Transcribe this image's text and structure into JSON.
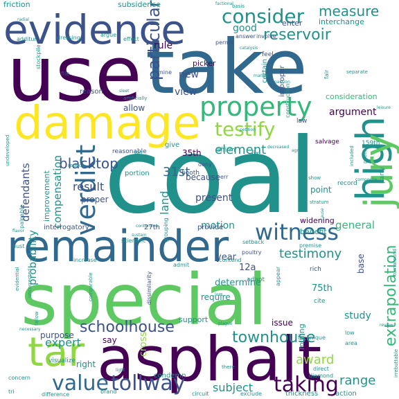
{
  "palette": {
    "dark_purple": "#440154",
    "indigo": "#3b528b",
    "blue": "#31688e",
    "teal": "#21918c",
    "green": "#35b779",
    "light_green": "#5ec962",
    "lime": "#90d743",
    "yellow": "#fde725",
    "gray": "#b8b8b8"
  },
  "words": [
    {
      "text": "coal",
      "weight": 1.0,
      "color": "teal",
      "vertical": false
    },
    {
      "text": "use",
      "weight": 0.9,
      "color": "dark_purple",
      "vertical": false
    },
    {
      "text": "take",
      "weight": 0.9,
      "color": "blue",
      "vertical": false
    },
    {
      "text": "special",
      "weight": 0.85,
      "color": "light_green",
      "vertical": false
    },
    {
      "text": "asphalt",
      "weight": 0.8,
      "color": "dark_purple",
      "vertical": false
    },
    {
      "text": "remainder",
      "weight": 0.6,
      "color": "blue",
      "vertical": false
    },
    {
      "text": "damage",
      "weight": 0.55,
      "color": "yellow",
      "vertical": false
    },
    {
      "text": "evidence",
      "weight": 0.5,
      "color": "indigo",
      "vertical": false
    },
    {
      "text": "high",
      "weight": 0.5,
      "color": "teal",
      "vertical": true
    },
    {
      "text": "jury",
      "weight": 0.45,
      "color": "light_green",
      "vertical": true
    },
    {
      "text": "tar",
      "weight": 0.45,
      "color": "lime",
      "vertical": false
    },
    {
      "text": "property",
      "weight": 0.35,
      "color": "green",
      "vertical": false
    },
    {
      "text": "witness",
      "weight": 0.3,
      "color": "blue",
      "vertical": false
    },
    {
      "text": "verdict",
      "weight": 0.3,
      "color": "blue",
      "vertical": true
    },
    {
      "text": "value",
      "weight": 0.28,
      "color": "blue",
      "vertical": false
    },
    {
      "text": "tollway",
      "weight": 0.28,
      "color": "indigo",
      "vertical": false
    },
    {
      "text": "taking",
      "weight": 0.28,
      "color": "dark_purple",
      "vertical": false
    },
    {
      "text": "consider",
      "weight": 0.25,
      "color": "teal",
      "vertical": false
    },
    {
      "text": "testify",
      "weight": 0.25,
      "color": "lime",
      "vertical": false
    },
    {
      "text": "schoolhouse",
      "weight": 0.22,
      "color": "indigo",
      "vertical": false
    },
    {
      "text": "extrapolation",
      "weight": 0.22,
      "color": "green",
      "vertical": true
    },
    {
      "text": "reservoir",
      "weight": 0.2,
      "color": "teal",
      "vertical": false
    },
    {
      "text": "particular",
      "weight": 0.2,
      "color": "indigo",
      "vertical": true
    },
    {
      "text": "townhouse",
      "weight": 0.2,
      "color": "teal",
      "vertical": false
    },
    {
      "text": "measure",
      "weight": 0.2,
      "color": "teal",
      "vertical": false
    },
    {
      "text": "testimony",
      "weight": 0.2,
      "color": "teal",
      "vertical": false
    },
    {
      "text": "blacktop",
      "weight": 0.2,
      "color": "indigo",
      "vertical": false
    },
    {
      "text": "element",
      "weight": 0.18,
      "color": "teal",
      "vertical": false
    },
    {
      "text": "award",
      "weight": 0.18,
      "color": "lime",
      "vertical": false
    },
    {
      "text": "range",
      "weight": 0.18,
      "color": "teal",
      "vertical": false
    },
    {
      "text": "31st",
      "weight": 0.18,
      "color": "blue",
      "vertical": false
    },
    {
      "text": "expert",
      "weight": 0.16,
      "color": "teal",
      "vertical": false
    },
    {
      "text": "compensation",
      "weight": 0.16,
      "color": "teal",
      "vertical": true
    },
    {
      "text": "probability",
      "weight": 0.16,
      "color": "teal",
      "vertical": true
    },
    {
      "text": "defendants",
      "weight": 0.16,
      "color": "indigo",
      "vertical": true
    },
    {
      "text": "result",
      "weight": 0.16,
      "color": "indigo",
      "vertical": false
    },
    {
      "text": "land",
      "weight": 0.16,
      "color": "teal",
      "vertical": true
    },
    {
      "text": "subject",
      "weight": 0.16,
      "color": "teal",
      "vertical": false
    },
    {
      "text": "general",
      "weight": 0.14,
      "color": "green",
      "vertical": false
    },
    {
      "text": "motion",
      "weight": 0.14,
      "color": "teal",
      "vertical": false
    },
    {
      "text": "present",
      "weight": 0.14,
      "color": "indigo",
      "vertical": false
    },
    {
      "text": "argument",
      "weight": 0.14,
      "color": "dark_purple",
      "vertical": false
    },
    {
      "text": "view",
      "weight": 0.14,
      "color": "indigo",
      "vertical": false
    },
    {
      "text": "new",
      "weight": 0.14,
      "color": "indigo",
      "vertical": false
    },
    {
      "text": "rule",
      "weight": 0.14,
      "color": "dark_purple",
      "vertical": false
    },
    {
      "text": "good",
      "weight": 0.14,
      "color": "teal",
      "vertical": false
    },
    {
      "text": "study",
      "weight": 0.14,
      "color": "teal",
      "vertical": false
    },
    {
      "text": "cross",
      "weight": 0.14,
      "color": "lime",
      "vertical": true
    },
    {
      "text": "determine",
      "weight": 0.13,
      "color": "teal",
      "vertical": false
    },
    {
      "text": "12a",
      "weight": 0.13,
      "color": "indigo",
      "vertical": false
    },
    {
      "text": "75th",
      "weight": 0.13,
      "color": "teal",
      "vertical": false
    },
    {
      "text": "year",
      "weight": 0.12,
      "color": "indigo",
      "vertical": false
    },
    {
      "text": "because",
      "weight": 0.12,
      "color": "indigo",
      "vertical": false
    },
    {
      "text": "point",
      "weight": 0.12,
      "color": "teal",
      "vertical": false
    },
    {
      "text": "proper",
      "weight": 0.12,
      "color": "indigo",
      "vertical": false
    },
    {
      "text": "35th",
      "weight": 0.12,
      "color": "dark_purple",
      "vertical": false
    },
    {
      "text": "purpose",
      "weight": 0.12,
      "color": "indigo",
      "vertical": false
    },
    {
      "text": "consideration",
      "weight": 0.12,
      "color": "green",
      "vertical": false
    },
    {
      "text": "benefit",
      "weight": 0.12,
      "color": "teal",
      "vertical": false
    },
    {
      "text": "base",
      "weight": 0.12,
      "color": "indigo",
      "vertical": true
    },
    {
      "text": "require",
      "weight": 0.12,
      "color": "teal",
      "vertical": false
    },
    {
      "text": "right",
      "weight": 0.12,
      "color": "teal",
      "vertical": false
    },
    {
      "text": "say",
      "weight": 0.12,
      "color": "dark_purple",
      "vertical": false
    },
    {
      "text": "support",
      "weight": 0.12,
      "color": "teal",
      "vertical": false
    },
    {
      "text": "mining",
      "weight": 0.12,
      "color": "teal",
      "vertical": true
    },
    {
      "text": "issue",
      "weight": 0.12,
      "color": "dark_purple",
      "vertical": false
    },
    {
      "text": "allow",
      "weight": 0.12,
      "color": "indigo",
      "vertical": false
    },
    {
      "text": "picker",
      "weight": 0.11,
      "color": "dark_purple",
      "vertical": false
    },
    {
      "text": "interchange",
      "weight": 0.11,
      "color": "teal",
      "vertical": false
    },
    {
      "text": "subsidence",
      "weight": 0.11,
      "color": "teal",
      "vertical": false
    },
    {
      "text": "friction",
      "weight": 0.11,
      "color": "teal",
      "vertical": false
    },
    {
      "text": "enter",
      "weight": 0.11,
      "color": "indigo",
      "vertical": false
    },
    {
      "text": "improvement",
      "weight": 0.11,
      "color": "teal",
      "vertical": true
    },
    {
      "text": "widening",
      "weight": 0.11,
      "color": "dark_purple",
      "vertical": false
    },
    {
      "text": "interrogatory",
      "weight": 0.1,
      "color": "indigo",
      "vertical": false
    },
    {
      "text": "give",
      "weight": 0.1,
      "color": "teal",
      "vertical": false
    },
    {
      "text": "reason",
      "weight": 0.1,
      "color": "indigo",
      "vertical": false
    },
    {
      "text": "portion",
      "weight": 0.1,
      "color": "teal",
      "vertical": false
    },
    {
      "text": "improper",
      "weight": 0.1,
      "color": "indigo",
      "vertical": true
    },
    {
      "text": "certain",
      "weight": 0.1,
      "color": "teal",
      "vertical": true
    },
    {
      "text": "provide",
      "weight": 0.1,
      "color": "indigo",
      "vertical": false
    },
    {
      "text": "27th",
      "weight": 0.1,
      "color": "indigo",
      "vertical": false
    },
    {
      "text": "visualize",
      "weight": 0.1,
      "color": "teal",
      "vertical": false
    },
    {
      "text": "condemn",
      "weight": 0.1,
      "color": "teal",
      "vertical": false
    },
    {
      "text": "action",
      "weight": 0.1,
      "color": "teal",
      "vertical": false
    },
    {
      "text": "thickness",
      "weight": 0.1,
      "color": "teal",
      "vertical": false
    },
    {
      "text": "adapt",
      "weight": 0.1,
      "color": "teal",
      "vertical": false
    },
    {
      "text": "rich",
      "weight": 0.1,
      "color": "indigo",
      "vertical": false
    },
    {
      "text": "cite",
      "weight": 0.1,
      "color": "teal",
      "vertical": false
    },
    {
      "text": "159th",
      "weight": 0.09,
      "color": "teal",
      "vertical": false
    },
    {
      "text": "salvage",
      "weight": 0.09,
      "color": "dark_purple",
      "vertical": false
    },
    {
      "text": "reasonable",
      "weight": 0.09,
      "color": "indigo",
      "vertical": false
    },
    {
      "text": "booth",
      "weight": 0.09,
      "color": "indigo",
      "vertical": false
    },
    {
      "text": "affirm",
      "weight": 0.09,
      "color": "teal",
      "vertical": false
    },
    {
      "text": "record",
      "weight": 0.09,
      "color": "teal",
      "vertical": false
    },
    {
      "text": "party",
      "weight": 0.09,
      "color": "teal",
      "vertical": true
    },
    {
      "text": "fix",
      "weight": 0.09,
      "color": "teal",
      "vertical": false
    },
    {
      "text": "law",
      "weight": 0.09,
      "color": "indigo",
      "vertical": false
    },
    {
      "text": "feel",
      "weight": 0.09,
      "color": "indigo",
      "vertical": false
    },
    {
      "text": "permit",
      "weight": 0.08,
      "color": "indigo",
      "vertical": false
    },
    {
      "text": "answer",
      "weight": 0.08,
      "color": "indigo",
      "vertical": false
    },
    {
      "text": "involve",
      "weight": 0.08,
      "color": "indigo",
      "vertical": false
    },
    {
      "text": "mine",
      "weight": 0.08,
      "color": "indigo",
      "vertical": false
    },
    {
      "text": "file",
      "weight": 0.08,
      "color": "indigo",
      "vertical": false
    },
    {
      "text": "effect",
      "weight": 0.08,
      "color": "teal",
      "vertical": false
    },
    {
      "text": "argue",
      "weight": 0.08,
      "color": "teal",
      "vertical": false
    },
    {
      "text": "dressing",
      "weight": 0.08,
      "color": "teal",
      "vertical": false
    },
    {
      "text": "additur",
      "weight": 0.08,
      "color": "teal",
      "vertical": false
    },
    {
      "text": "stockpile",
      "weight": 0.08,
      "color": "teal",
      "vertical": true
    },
    {
      "text": "palpable",
      "weight": 0.08,
      "color": "teal",
      "vertical": true
    },
    {
      "text": "setback",
      "weight": 0.08,
      "color": "teal",
      "vertical": false
    },
    {
      "text": "contend",
      "weight": 0.08,
      "color": "teal",
      "vertical": false
    },
    {
      "text": "scientific",
      "weight": 0.08,
      "color": "teal",
      "vertical": false
    },
    {
      "text": "premise",
      "weight": 0.08,
      "color": "teal",
      "vertical": false
    },
    {
      "text": "appear",
      "weight": 0.08,
      "color": "teal",
      "vertical": true
    },
    {
      "text": "poultry",
      "weight": 0.08,
      "color": "indigo",
      "vertical": false
    },
    {
      "text": "dissimilarity",
      "weight": 0.08,
      "color": "indigo",
      "vertical": true
    },
    {
      "text": "admit",
      "weight": 0.08,
      "color": "teal",
      "vertical": false
    },
    {
      "text": "increase",
      "weight": 0.08,
      "color": "teal",
      "vertical": false
    },
    {
      "text": "dust",
      "weight": 0.08,
      "color": "teal",
      "vertical": false
    },
    {
      "text": "concern",
      "weight": 0.08,
      "color": "teal",
      "vertical": false
    },
    {
      "text": "tri",
      "weight": 0.08,
      "color": "teal",
      "vertical": false
    },
    {
      "text": "difference",
      "weight": 0.08,
      "color": "teal",
      "vertical": false
    },
    {
      "text": "brand",
      "weight": 0.08,
      "color": "teal",
      "vertical": false
    },
    {
      "text": "circuit",
      "weight": 0.08,
      "color": "teal",
      "vertical": false
    },
    {
      "text": "exclude",
      "weight": 0.08,
      "color": "teal",
      "vertical": false
    },
    {
      "text": "diamond",
      "weight": 0.08,
      "color": "teal",
      "vertical": false
    },
    {
      "text": "direct",
      "weight": 0.08,
      "color": "teal",
      "vertical": false
    },
    {
      "text": "low",
      "weight": 0.08,
      "color": "teal",
      "vertical": false
    },
    {
      "text": "area",
      "weight": 0.08,
      "color": "teal",
      "vertical": false
    },
    {
      "text": "technique",
      "weight": 0.08,
      "color": "teal",
      "vertical": false
    },
    {
      "text": "fair",
      "weight": 0.08,
      "color": "teal",
      "vertical": true
    },
    {
      "text": "deny",
      "weight": 0.08,
      "color": "indigo",
      "vertical": false
    },
    {
      "text": "err",
      "weight": 0.08,
      "color": "indigo",
      "vertical": false
    },
    {
      "text": "grouping",
      "weight": 0.08,
      "color": "teal",
      "vertical": true
    },
    {
      "text": "construction",
      "weight": 0.08,
      "color": "teal",
      "vertical": true
    },
    {
      "text": "separate",
      "weight": 0.07,
      "color": "teal",
      "vertical": false
    },
    {
      "text": "turnaround",
      "weight": 0.07,
      "color": "teal",
      "vertical": true
    },
    {
      "text": "included",
      "weight": 0.07,
      "color": "teal",
      "vertical": true
    },
    {
      "text": "stratum",
      "weight": 0.07,
      "color": "teal",
      "vertical": false
    },
    {
      "text": "public",
      "weight": 0.07,
      "color": "teal",
      "vertical": true
    },
    {
      "text": "fallow",
      "weight": 0.07,
      "color": "teal",
      "vertical": true
    },
    {
      "text": "evidential",
      "weight": 0.07,
      "color": "teal",
      "vertical": true
    },
    {
      "text": "uncorrected",
      "weight": 0.07,
      "color": "teal",
      "vertical": true
    },
    {
      "text": "comparable",
      "weight": 0.07,
      "color": "teal",
      "vertical": true
    },
    {
      "text": "undeveloped",
      "weight": 0.07,
      "color": "teal",
      "vertical": true
    },
    {
      "text": "artificially",
      "weight": 0.07,
      "color": "teal",
      "vertical": false
    },
    {
      "text": "ton",
      "weight": 0.07,
      "color": "teal",
      "vertical": false
    },
    {
      "text": "reduce",
      "weight": 0.07,
      "color": "teal",
      "vertical": false
    },
    {
      "text": "basis",
      "weight": 0.07,
      "color": "teal",
      "vertical": false
    },
    {
      "text": "show",
      "weight": 0.07,
      "color": "teal",
      "vertical": false
    },
    {
      "text": "irrebuttable",
      "weight": 0.07,
      "color": "teal",
      "vertical": true
    },
    {
      "text": "there",
      "weight": 0.07,
      "color": "teal",
      "vertical": false
    },
    {
      "text": "market",
      "weight": 0.06,
      "color": "teal",
      "vertical": false
    },
    {
      "text": "decreased",
      "weight": 0.06,
      "color": "teal",
      "vertical": false
    },
    {
      "text": "petition",
      "weight": 0.06,
      "color": "teal",
      "vertical": false
    },
    {
      "text": "plague",
      "weight": 0.06,
      "color": "teal",
      "vertical": false
    },
    {
      "text": "catalysis",
      "weight": 0.06,
      "color": "teal",
      "vertical": false
    },
    {
      "text": "factional",
      "weight": 0.06,
      "color": "teal",
      "vertical": false
    },
    {
      "text": "radial",
      "weight": 0.06,
      "color": "teal",
      "vertical": false
    },
    {
      "text": "agree",
      "weight": 0.06,
      "color": "teal",
      "vertical": false
    },
    {
      "text": "leisure",
      "weight": 0.06,
      "color": "teal",
      "vertical": false
    },
    {
      "text": "sleet",
      "weight": 0.06,
      "color": "teal",
      "vertical": false
    },
    {
      "text": "flavor",
      "weight": 0.06,
      "color": "teal",
      "vertical": false
    },
    {
      "text": "sustain",
      "weight": 0.06,
      "color": "teal",
      "vertical": false
    },
    {
      "text": "review",
      "weight": 0.06,
      "color": "teal",
      "vertical": false
    },
    {
      "text": "necessary",
      "weight": 0.06,
      "color": "teal",
      "vertical": false
    },
    {
      "text": "contention",
      "weight": 0.06,
      "color": "teal",
      "vertical": false
    },
    {
      "text": "composite",
      "weight": 0.06,
      "color": "teal",
      "vertical": false
    },
    {
      "text": "cause",
      "weight": 0.06,
      "color": "teal",
      "vertical": true
    },
    {
      "text": "loss",
      "weight": 0.06,
      "color": "teal",
      "vertical": false
    },
    {
      "text": "light",
      "weight": 0.06,
      "color": "teal",
      "vertical": false
    },
    {
      "text": "passion",
      "weight": 0.06,
      "color": "teal",
      "vertical": false
    }
  ]
}
